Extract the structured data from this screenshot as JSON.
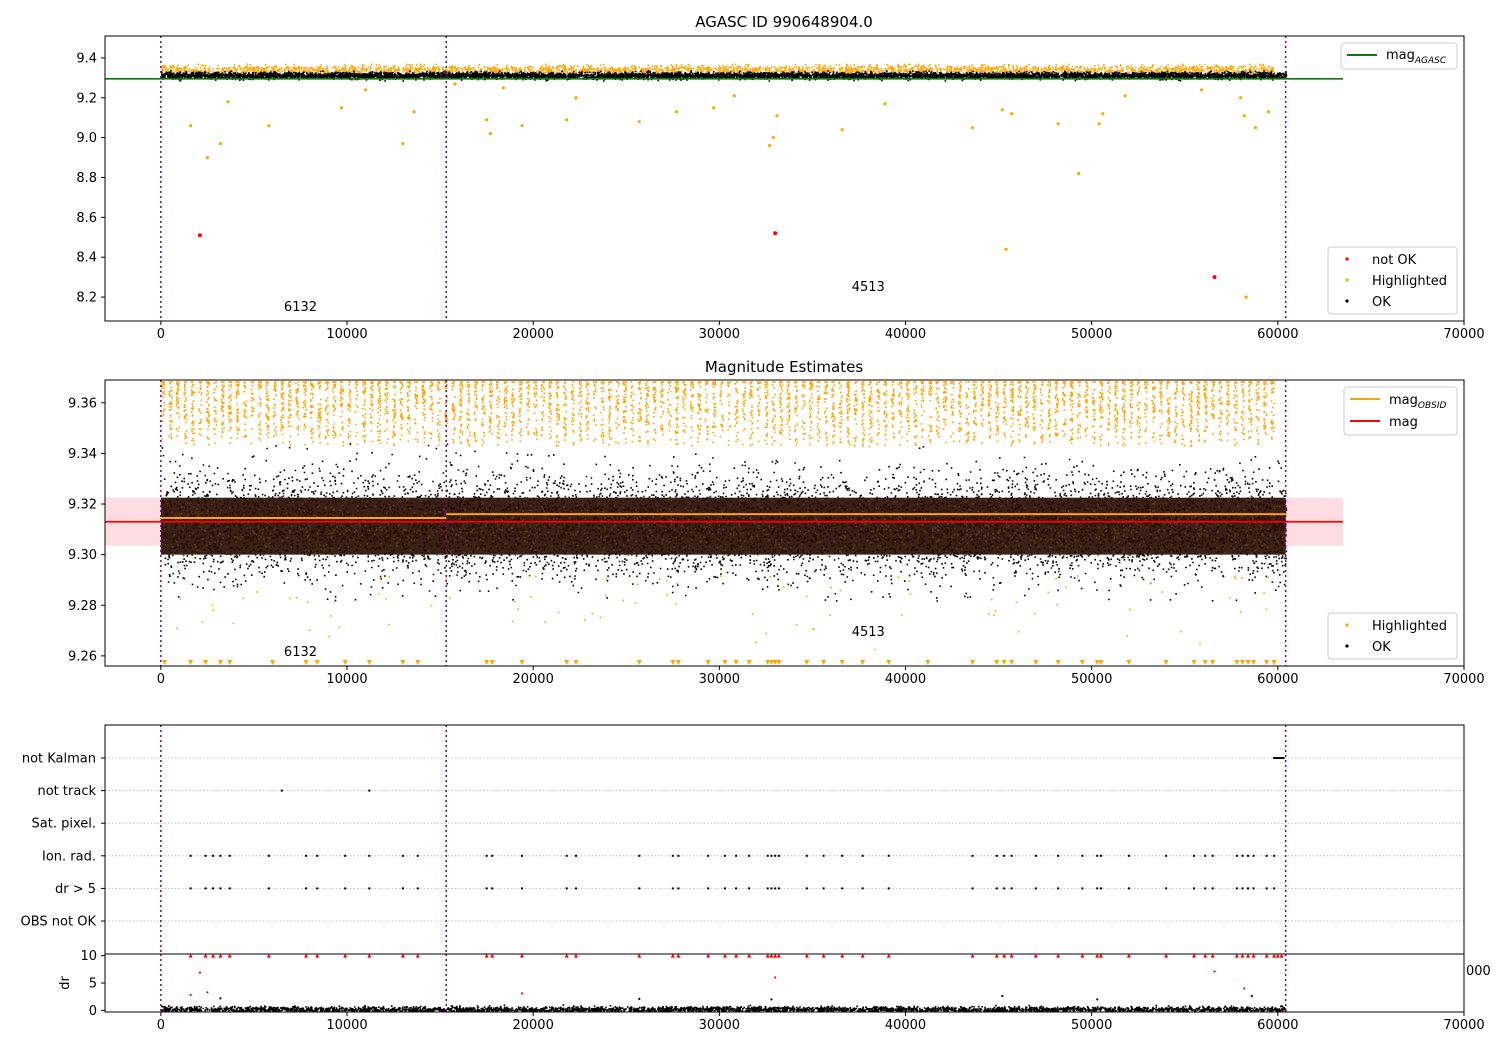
{
  "chart_data": [
    {
      "type": "scatter",
      "title": "AGASC ID 990648904.0",
      "xlim": [
        -3000,
        70000
      ],
      "ylim": [
        8.08,
        9.51
      ],
      "xticks": [
        0,
        10000,
        20000,
        30000,
        40000,
        50000,
        60000,
        70000
      ],
      "yticks": [
        8.2,
        8.4,
        8.6,
        8.8,
        9.0,
        9.2,
        9.4
      ],
      "ytick_labels": [
        "8.2",
        "8.4",
        "8.6",
        "8.8",
        "9.0",
        "9.2",
        "9.4"
      ],
      "xtick_labels": [
        "0",
        "10000",
        "20000",
        "30000",
        "40000",
        "50000",
        "60000",
        "70000"
      ],
      "obs_boundaries": [
        0,
        15330,
        60420
      ],
      "obs_labels": [
        {
          "x": 7500,
          "y": 8.15,
          "text": "6132"
        },
        {
          "x": 38000,
          "y": 8.25,
          "text": "4513"
        }
      ],
      "ok_band": {
        "x0": 0,
        "x1": 60420,
        "ymin": 9.29,
        "ymax": 9.335
      },
      "series": [
        {
          "name": "mag_AGASC",
          "type": "line",
          "color": "#008000",
          "x": [
            -3000,
            63500
          ],
          "y": [
            9.295,
            9.295
          ]
        },
        {
          "name": "not OK",
          "color": "#ff0000",
          "x": [
            2100,
            33000,
            56600
          ],
          "y": [
            8.51,
            8.52,
            8.3
          ]
        },
        {
          "name": "Highlighted",
          "color": "#ffa500",
          "x": [
            1600,
            2500,
            3200,
            3600,
            5800,
            9700,
            11000,
            13000,
            13600,
            15800,
            17500,
            17700,
            18400,
            19400,
            21800,
            22300,
            25700,
            27700,
            29700,
            30800,
            32700,
            32900,
            33100,
            36600,
            38900,
            43600,
            45200,
            45400,
            45700,
            48200,
            49300,
            50400,
            50600,
            51800,
            55900,
            58000,
            58200,
            58300,
            58800,
            59500
          ],
          "y": [
            9.06,
            8.9,
            8.97,
            9.18,
            9.06,
            9.15,
            9.24,
            8.97,
            9.13,
            9.27,
            9.09,
            9.02,
            9.25,
            9.06,
            9.09,
            9.2,
            9.08,
            9.13,
            9.15,
            9.21,
            8.96,
            9.0,
            9.11,
            9.04,
            9.17,
            9.05,
            9.14,
            8.44,
            9.12,
            9.07,
            8.82,
            9.07,
            9.12,
            9.21,
            9.24,
            9.2,
            9.11,
            8.2,
            9.05,
            9.13
          ]
        },
        {
          "name": "OK",
          "color": "#000000",
          "x": [],
          "y": []
        }
      ],
      "legend_upper": [
        "mag_AGASC"
      ],
      "legend_lower": [
        "not OK",
        "Highlighted",
        "OK"
      ]
    },
    {
      "type": "scatter",
      "title": "Magnitude Estimates",
      "xlim": [
        -3000,
        70000
      ],
      "ylim": [
        9.256,
        9.369
      ],
      "xticks": [
        0,
        10000,
        20000,
        30000,
        40000,
        50000,
        60000,
        70000
      ],
      "yticks": [
        9.26,
        9.28,
        9.3,
        9.32,
        9.34,
        9.36
      ],
      "ytick_labels": [
        "9.26",
        "9.28",
        "9.30",
        "9.32",
        "9.34",
        "9.36"
      ],
      "xtick_labels": [
        "0",
        "10000",
        "20000",
        "30000",
        "40000",
        "50000",
        "60000",
        "70000"
      ],
      "obs_boundaries": [
        0,
        15330,
        60420
      ],
      "obs_labels": [
        {
          "x": 7500,
          "y": 9.26,
          "text": "6132"
        },
        {
          "x": 38000,
          "y": 9.27,
          "text": "4513"
        }
      ],
      "mag_band": {
        "ymin": 9.3035,
        "ymax": 9.3225
      },
      "series": [
        {
          "name": "mag_OBSID",
          "type": "step",
          "color": "#ffa500",
          "segments": [
            [
              0,
              15330,
              9.3145
            ],
            [
              15330,
              60420,
              9.316
            ]
          ]
        },
        {
          "name": "mag",
          "type": "line",
          "color": "#ff0000",
          "x": [
            -3000,
            63500
          ],
          "y": [
            9.313,
            9.313
          ]
        },
        {
          "name": "Highlighted",
          "color": "#ffa500",
          "x": [],
          "y": []
        },
        {
          "name": "OK",
          "color": "#000000",
          "x": [],
          "y": []
        }
      ],
      "low_markers_x": [
        200,
        1600,
        2400,
        3200,
        3700,
        6000,
        7800,
        8400,
        9900,
        11200,
        13000,
        13800,
        17500,
        17800,
        19400,
        21800,
        22300,
        25700,
        27500,
        27800,
        29400,
        30300,
        30900,
        31600,
        32600,
        32800,
        33000,
        33200,
        34700,
        35600,
        36600,
        37700,
        39100,
        41200,
        43600,
        44900,
        45300,
        45700,
        47000,
        48200,
        49500,
        50300,
        50500,
        52000,
        54000,
        55500,
        56100,
        56500,
        57800,
        58100,
        58400,
        58700,
        59400,
        59800
      ],
      "legend_upper": [
        "mag_OBSID",
        "mag"
      ],
      "legend_lower": [
        "Highlighted",
        "OK"
      ]
    },
    {
      "type": "scatter",
      "title": "",
      "categories": [
        "OBS not OK",
        "dr > 5",
        "Ion. rad.",
        "Sat. pixel.",
        "not track",
        "not Kalman"
      ],
      "xlim": [
        -3000,
        70000
      ],
      "obs_boundaries": [
        0,
        15330,
        60420
      ],
      "flags": {
        "dr > 5": [
          1600,
          2400,
          2800,
          3200,
          3700,
          5800,
          7800,
          8400,
          9900,
          11200,
          13000,
          13800,
          17500,
          17800,
          19400,
          21800,
          22300,
          25700,
          27500,
          27800,
          29400,
          30300,
          30900,
          31600,
          32600,
          32800,
          33000,
          33200,
          34700,
          35600,
          36600,
          37700,
          39100,
          43600,
          44900,
          45300,
          45700,
          47000,
          48200,
          49500,
          50300,
          50500,
          52000,
          54000,
          55500,
          56100,
          56500,
          57800,
          58100,
          58400,
          58700,
          59400,
          59800
        ],
        "Ion. rad.": [
          1600,
          2400,
          2800,
          3200,
          3700,
          5800,
          7800,
          8400,
          9900,
          11200,
          13000,
          13800,
          17500,
          17800,
          19400,
          21800,
          22300,
          25700,
          27500,
          27800,
          29400,
          30300,
          30900,
          31600,
          32600,
          32800,
          33000,
          33200,
          34700,
          35600,
          36600,
          37700,
          39100,
          43600,
          44900,
          45300,
          45700,
          47000,
          48200,
          49500,
          50300,
          50500,
          52000,
          54000,
          55500,
          56100,
          56500,
          57800,
          58100,
          58400,
          58700,
          59400,
          59800
        ],
        "not track": [
          6500,
          11200
        ],
        "not Kalman": [
          59800,
          59900,
          60000,
          60100,
          60200,
          60300
        ]
      }
    },
    {
      "type": "scatter",
      "title": "",
      "ylabel": "dr",
      "xlim": [
        -3000,
        70000
      ],
      "ylim": [
        -0.3,
        10.3
      ],
      "xticks": [
        0,
        10000,
        20000,
        30000,
        40000,
        50000,
        60000,
        70000
      ],
      "yticks": [
        0,
        5,
        10
      ],
      "ytick_labels": [
        "0",
        "5",
        "10"
      ],
      "xtick_labels": [
        "0",
        "10000",
        "20000",
        "30000",
        "40000",
        "50000",
        "60000",
        "70000"
      ],
      "obs_boundaries": [
        0,
        15330,
        60420
      ],
      "stray_tick_label": "000",
      "capped_x": [
        1600,
        2400,
        2800,
        3200,
        3700,
        5800,
        7800,
        8400,
        9900,
        11200,
        13000,
        13800,
        17500,
        17800,
        19400,
        21800,
        22300,
        25700,
        27500,
        27800,
        29400,
        30300,
        30900,
        31600,
        32600,
        32800,
        33000,
        33200,
        34700,
        35600,
        36600,
        37700,
        39100,
        43600,
        44900,
        45300,
        45700,
        47000,
        48200,
        49500,
        50300,
        50500,
        52000,
        54000,
        55500,
        56100,
        56500,
        57800,
        58100,
        58400,
        58700,
        59400,
        59800,
        60000,
        60200
      ],
      "red_points": [
        [
          1600,
          2.8
        ],
        [
          2100,
          6.9
        ],
        [
          2500,
          3.3
        ],
        [
          19400,
          3.1
        ],
        [
          33000,
          6.0
        ],
        [
          56600,
          7.1
        ],
        [
          58200,
          4.0
        ]
      ],
      "black_outliers": [
        [
          3200,
          2.2
        ],
        [
          25700,
          2.1
        ],
        [
          32800,
          2.0
        ],
        [
          45200,
          2.6
        ],
        [
          50300,
          2.0
        ],
        [
          58600,
          2.6
        ]
      ]
    }
  ],
  "labels": {
    "legend_mag_agasc": "mag",
    "legend_mag_agasc_sub": "AGASC",
    "legend_mag_obsid": "mag",
    "legend_mag_obsid_sub": "OBSID",
    "legend_mag": "mag",
    "legend_not_ok": "not OK",
    "legend_highlighted": "Highlighted",
    "legend_ok": "OK"
  }
}
